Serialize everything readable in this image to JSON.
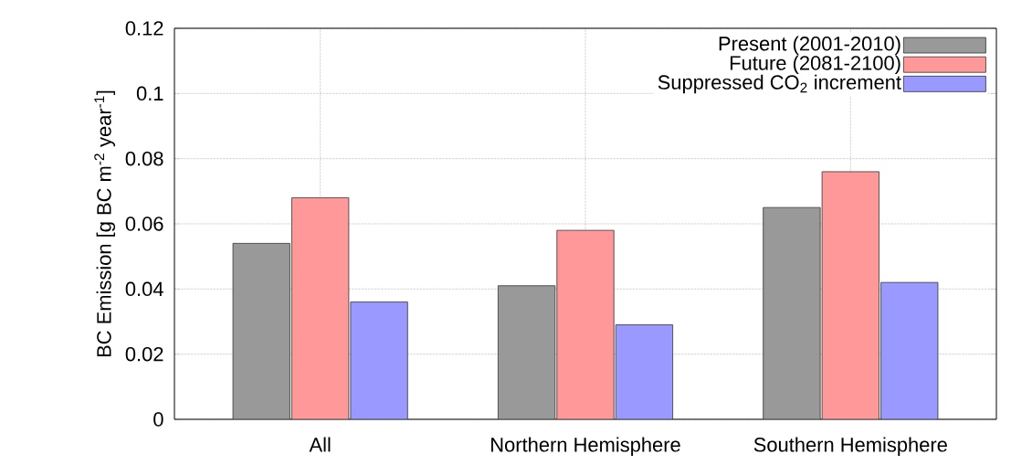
{
  "chart_data": {
    "type": "bar",
    "ylabel": "BC Emission [g BC m$^{-2}$ year$^{-1}$]",
    "categories": [
      "All",
      "Northern Hemisphere",
      "Southern Hemisphere"
    ],
    "series": [
      {
        "name": "Present (2001-2010)",
        "color": "#999999",
        "values": [
          0.054,
          0.041,
          0.065
        ]
      },
      {
        "name": "Future (2081-2100)",
        "color": "#ff9999",
        "values": [
          0.068,
          0.058,
          0.076
        ]
      },
      {
        "name": "Suppressed CO$_{2}$ increment",
        "color": "#9999ff",
        "values": [
          0.036,
          0.029,
          0.042
        ]
      }
    ],
    "ylim": [
      0,
      0.12
    ],
    "yticks": [
      0,
      0.02,
      0.04,
      0.06,
      0.08,
      0.1,
      0.12
    ],
    "grid": true,
    "legend": "top right"
  }
}
